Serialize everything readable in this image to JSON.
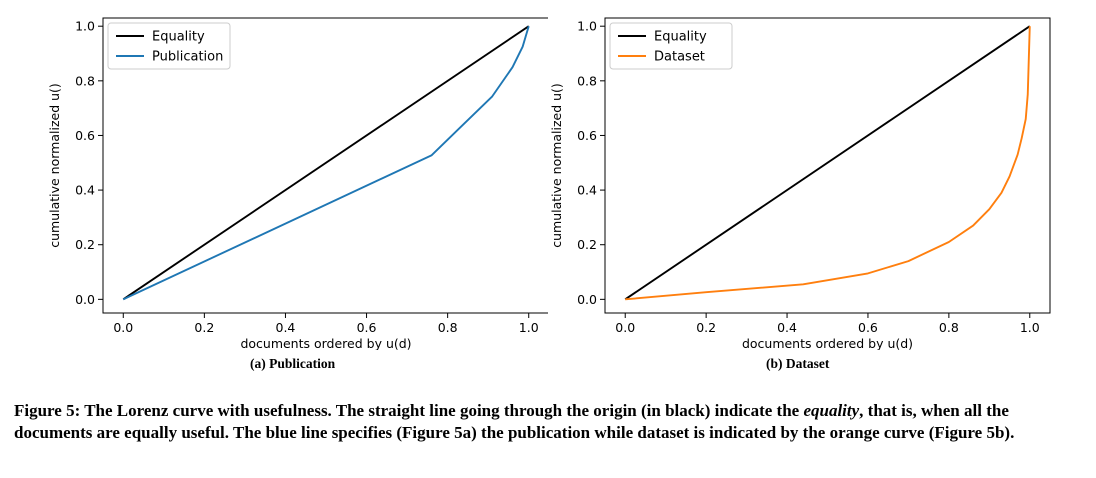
{
  "chart_data": [
    {
      "id": "a",
      "type": "line",
      "xlabel": "documents ordered by u(d)",
      "ylabel": "cumulative normalized u()",
      "xlim": [
        -0.05,
        1.05
      ],
      "ylim": [
        -0.05,
        1.03
      ],
      "xticks": [
        0.0,
        0.2,
        0.4,
        0.6,
        0.8,
        1.0
      ],
      "yticks": [
        0.0,
        0.2,
        0.4,
        0.6,
        0.8,
        1.0
      ],
      "tick_labels": [
        "0.0",
        "0.2",
        "0.4",
        "0.6",
        "0.8",
        "1.0"
      ],
      "legend_position": "upper-left",
      "series": [
        {
          "name": "Equality",
          "color": "#000000",
          "x": [
            0.0,
            1.0
          ],
          "y": [
            0.0,
            1.0
          ]
        },
        {
          "name": "Publication",
          "color": "#1f77b4",
          "x": [
            0.0,
            0.76,
            0.91,
            0.96,
            0.985,
            0.995,
            1.0
          ],
          "y": [
            0.0,
            0.527,
            0.743,
            0.85,
            0.925,
            0.975,
            1.0
          ]
        }
      ],
      "subcaption": "(a) Publication"
    },
    {
      "id": "b",
      "type": "line",
      "xlabel": "documents ordered by u(d)",
      "ylabel": "cumulative normalized u()",
      "xlim": [
        -0.05,
        1.05
      ],
      "ylim": [
        -0.05,
        1.03
      ],
      "xticks": [
        0.0,
        0.2,
        0.4,
        0.6,
        0.8,
        1.0
      ],
      "yticks": [
        0.0,
        0.2,
        0.4,
        0.6,
        0.8,
        1.0
      ],
      "tick_labels": [
        "0.0",
        "0.2",
        "0.4",
        "0.6",
        "0.8",
        "1.0"
      ],
      "legend_position": "upper-left",
      "series": [
        {
          "name": "Equality",
          "color": "#000000",
          "x": [
            0.0,
            1.0
          ],
          "y": [
            0.0,
            1.0
          ]
        },
        {
          "name": "Dataset",
          "color": "#ff7f0e",
          "x": [
            0.0,
            0.2,
            0.44,
            0.6,
            0.7,
            0.8,
            0.86,
            0.9,
            0.93,
            0.95,
            0.97,
            0.98,
            0.99,
            0.995,
            1.0
          ],
          "y": [
            0.0,
            0.026,
            0.055,
            0.095,
            0.14,
            0.21,
            0.27,
            0.33,
            0.39,
            0.45,
            0.53,
            0.59,
            0.66,
            0.75,
            1.0
          ]
        }
      ],
      "subcaption": "(b) Dataset"
    }
  ],
  "caption": {
    "part1": "Figure 5: The Lorenz curve with usefulness. The straight line going through the origin (in black) indicate the ",
    "emph": "equality",
    "part2": ", that is, when all the documents are equally useful. The blue line specifies (Figure 5a) the publication while dataset is indicated by the orange curve (Figure 5b)."
  }
}
